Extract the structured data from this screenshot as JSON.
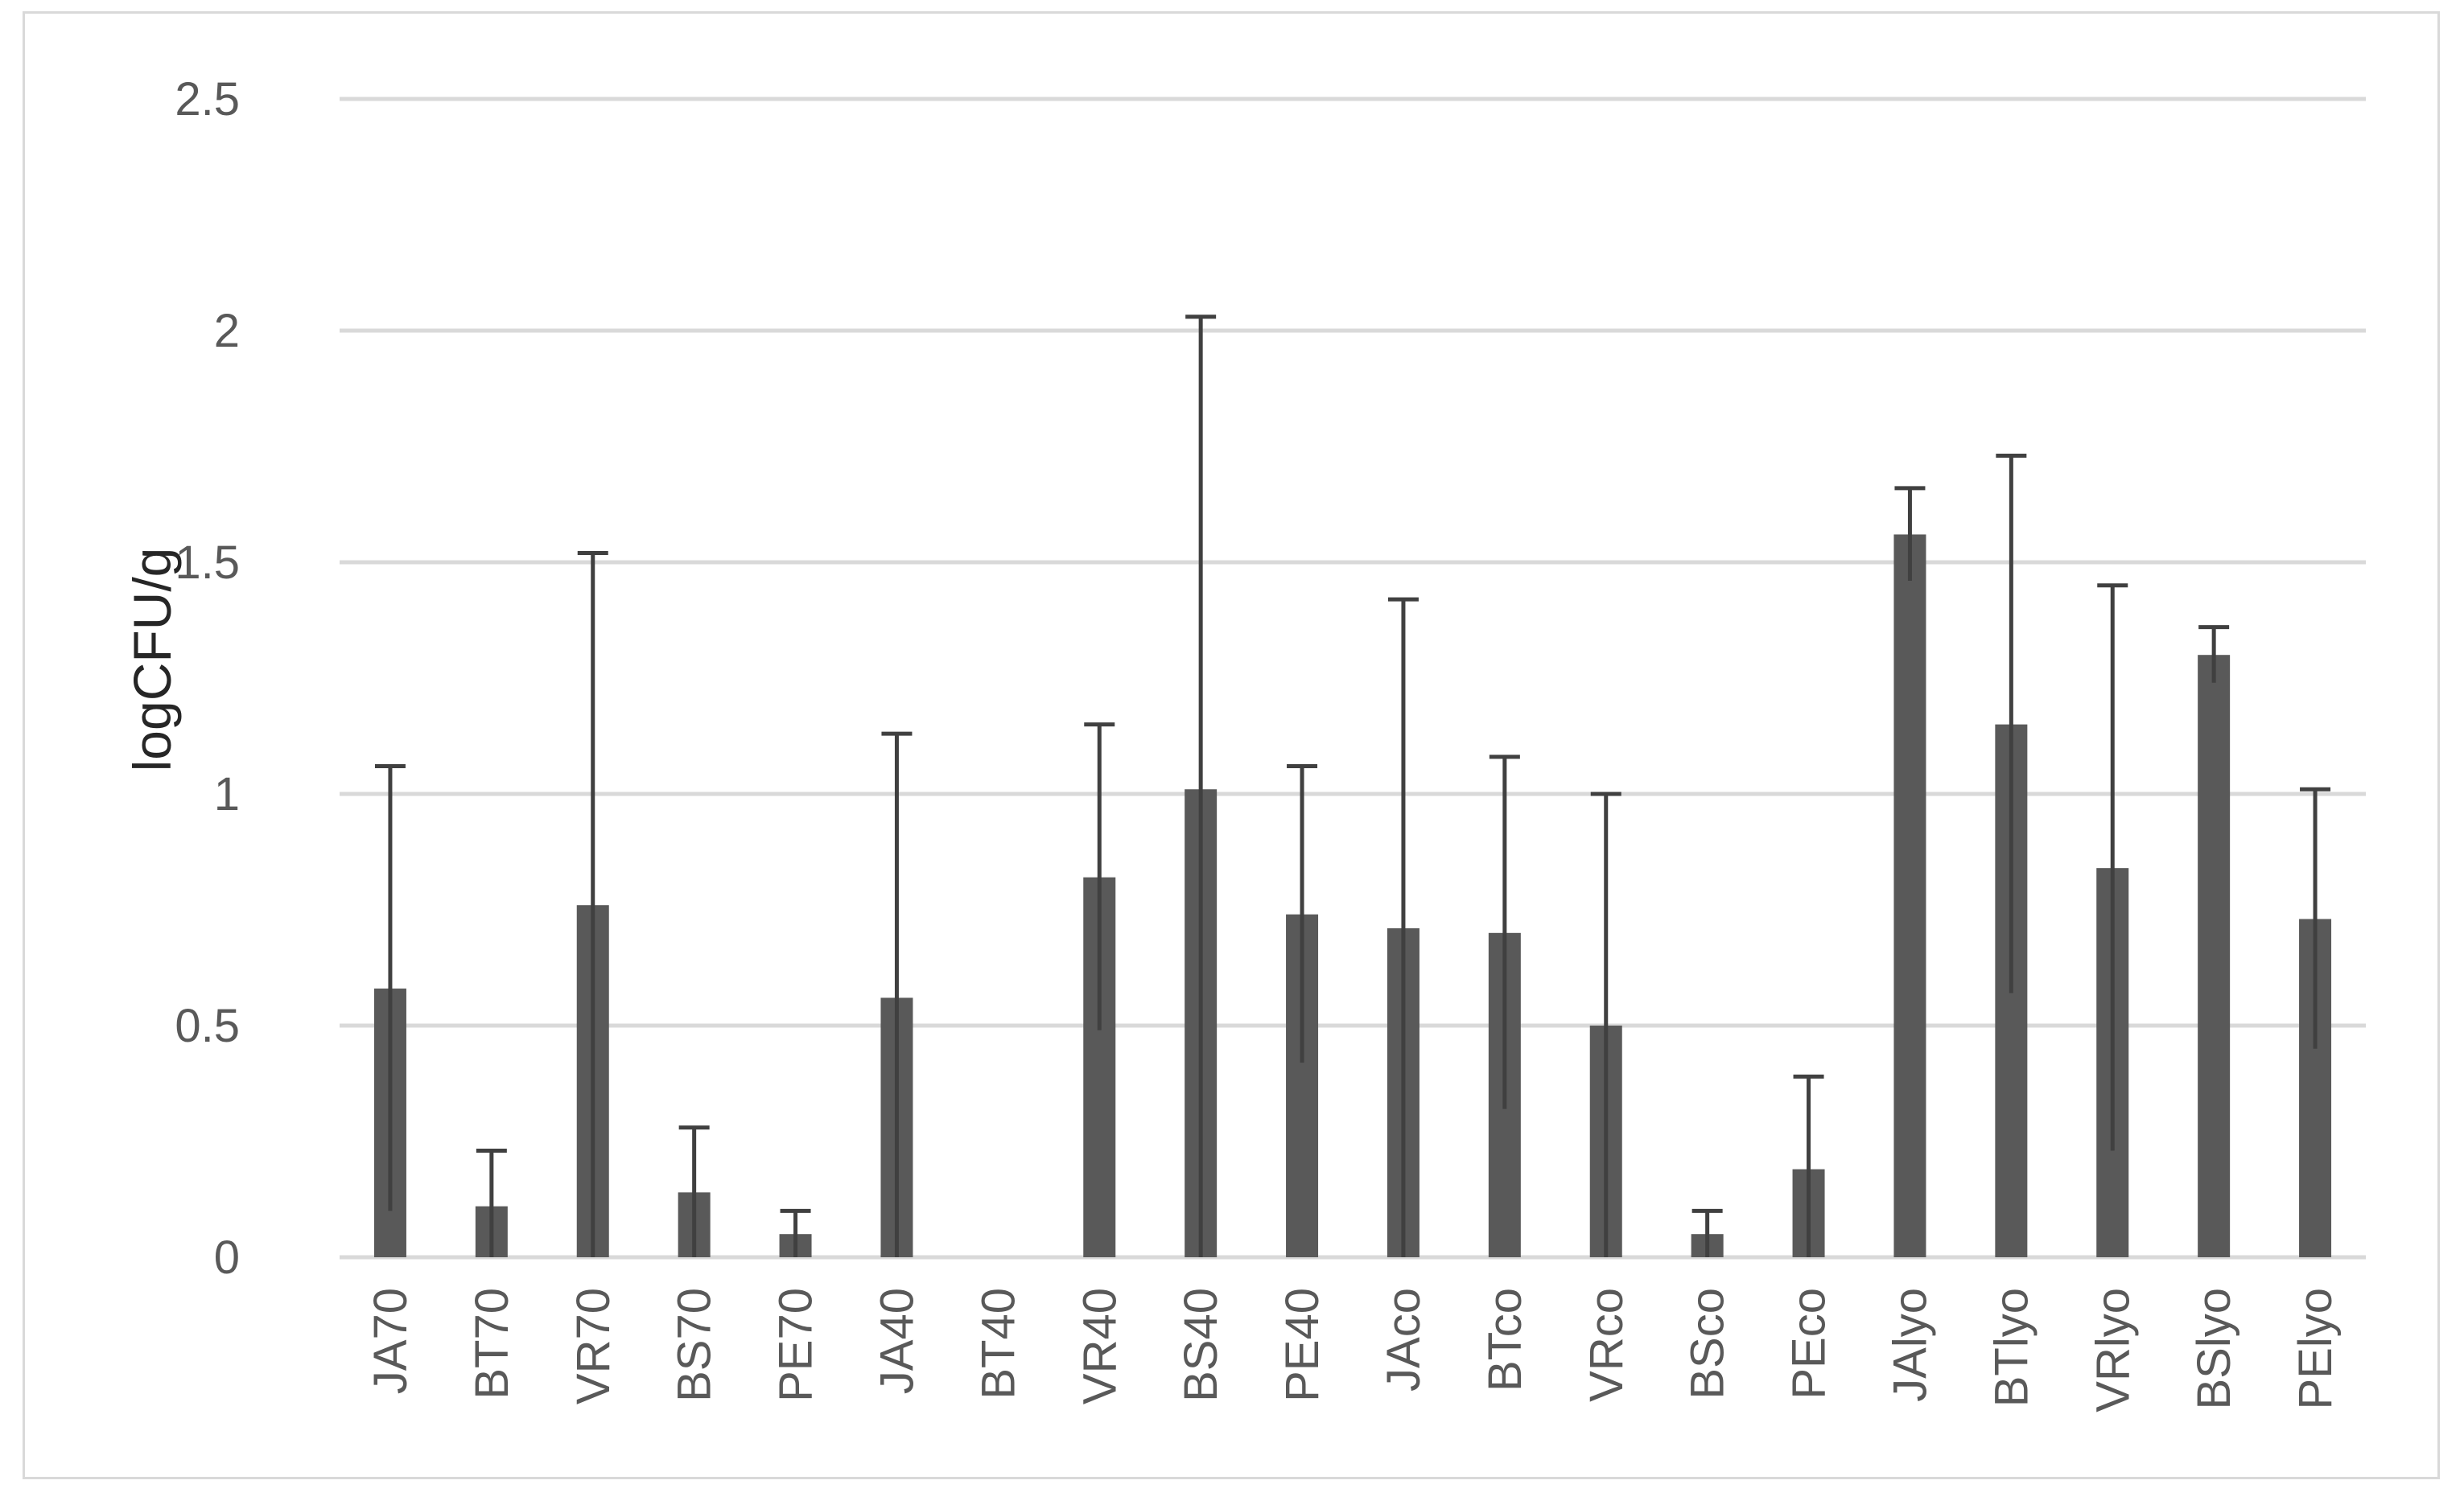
{
  "chart_data": {
    "type": "bar",
    "ylabel": "logCFU/g",
    "xlabel": "",
    "title": "",
    "ylim": [
      0,
      2.5
    ],
    "ytick_step": 0.5,
    "yticks": [
      "0",
      "0.5",
      "1",
      "1.5",
      "2",
      "2.5"
    ],
    "grid": true,
    "bar_color": "#595959",
    "errorbar_color": "#404040",
    "gridline_color": "#d9d9d9",
    "categories": [
      "JA70",
      "BT70",
      "VR70",
      "BS70",
      "PE70",
      "JA40",
      "BT40",
      "VR40",
      "BS40",
      "PE40",
      "JAco",
      "BTco",
      "VRco",
      "BSco",
      "PEco",
      "JAlyo",
      "BTlyo",
      "VRlyo",
      "BSlyo",
      "PElyo"
    ],
    "values": [
      0.58,
      0.11,
      0.76,
      0.14,
      0.05,
      0.56,
      0,
      0.82,
      1.01,
      0.74,
      0.71,
      0.7,
      0.5,
      0.05,
      0.19,
      1.56,
      1.15,
      0.84,
      1.3,
      0.73
    ],
    "error": [
      0.48,
      0.12,
      0.76,
      0.14,
      0.05,
      0.57,
      0,
      0.33,
      1.02,
      0.32,
      0.71,
      0.38,
      0.5,
      0.05,
      0.2,
      0.1,
      0.58,
      0.61,
      0.06,
      0.28
    ]
  }
}
